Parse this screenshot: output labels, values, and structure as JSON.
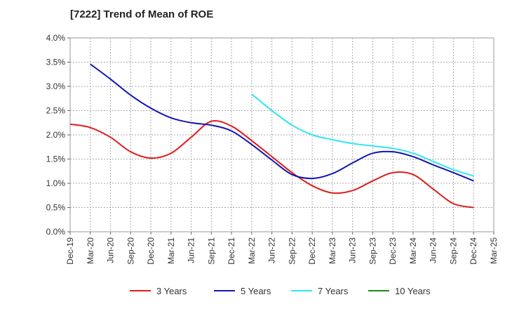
{
  "chart_data": {
    "type": "line",
    "title": "[7222]  Trend of Mean of ROE",
    "xlabel": "",
    "ylabel": "",
    "y_ticks": [
      "0.0%",
      "0.5%",
      "1.0%",
      "1.5%",
      "2.0%",
      "2.5%",
      "3.0%",
      "3.5%",
      "4.0%"
    ],
    "ylim": [
      0,
      4.0
    ],
    "x_ticks": [
      "Dec-19",
      "Mar-20",
      "Jun-20",
      "Sep-20",
      "Dec-20",
      "Mar-21",
      "Jun-21",
      "Sep-21",
      "Dec-21",
      "Mar-22",
      "Jun-22",
      "Sep-22",
      "Dec-22",
      "Mar-23",
      "Jun-23",
      "Sep-23",
      "Dec-23",
      "Mar-24",
      "Jun-24",
      "Sep-24",
      "Dec-24",
      "Mar-25"
    ],
    "grid": true,
    "legend_position": "bottom",
    "series": [
      {
        "name": "3 Years",
        "color": "#e01b1b",
        "start_index": 0,
        "values": [
          2.22,
          2.15,
          1.95,
          1.65,
          1.52,
          1.62,
          1.95,
          2.28,
          2.18,
          1.88,
          1.55,
          1.22,
          0.95,
          0.8,
          0.85,
          1.05,
          1.22,
          1.18,
          0.88,
          0.58,
          0.5
        ]
      },
      {
        "name": "5 Years",
        "color": "#1414b4",
        "start_index": 1,
        "values": [
          3.46,
          3.15,
          2.82,
          2.55,
          2.35,
          2.25,
          2.2,
          2.08,
          1.8,
          1.48,
          1.18,
          1.1,
          1.2,
          1.42,
          1.62,
          1.65,
          1.55,
          1.38,
          1.22,
          1.05
        ]
      },
      {
        "name": "7 Years",
        "color": "#2ee6f0",
        "start_index": 9,
        "values": [
          2.84,
          2.5,
          2.2,
          2.0,
          1.9,
          1.82,
          1.77,
          1.72,
          1.62,
          1.45,
          1.28,
          1.15
        ]
      },
      {
        "name": "10 Years",
        "color": "#1a8c1a",
        "start_index": 0,
        "values": []
      }
    ]
  }
}
